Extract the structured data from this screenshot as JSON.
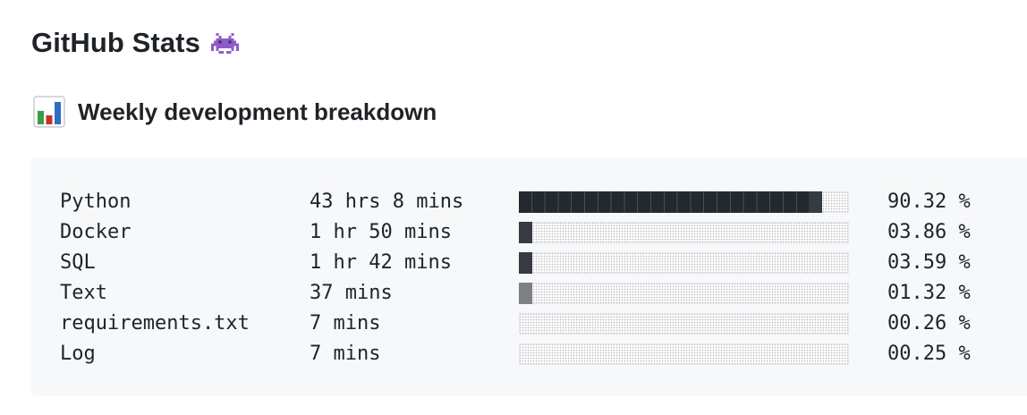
{
  "header": {
    "title": "GitHub Stats",
    "title_icon": "alien-monster-icon",
    "subtitle": "Weekly development breakdown",
    "subtitle_icon": "bar-chart-icon"
  },
  "colors": {
    "bar_fill": "#24292f",
    "code_background": "#f6f8fa",
    "text": "#1f2328"
  },
  "stats": [
    {
      "language": "Python",
      "time": "43 hrs 8 mins",
      "percent": "90.32 %",
      "fraction": 0.9032
    },
    {
      "language": "Docker",
      "time": "1 hr 50 mins",
      "percent": "03.86 %",
      "fraction": 0.0386
    },
    {
      "language": "SQL",
      "time": "1 hr 42 mins",
      "percent": "03.59 %",
      "fraction": 0.0359
    },
    {
      "language": "Text",
      "time": "37 mins",
      "percent": "01.32 %",
      "fraction": 0.0132
    },
    {
      "language": "requirements.txt",
      "time": "7 mins",
      "percent": "00.26 %",
      "fraction": 0.0026
    },
    {
      "language": "Log",
      "time": "7 mins",
      "percent": "00.25 %",
      "fraction": 0.0025
    }
  ]
}
